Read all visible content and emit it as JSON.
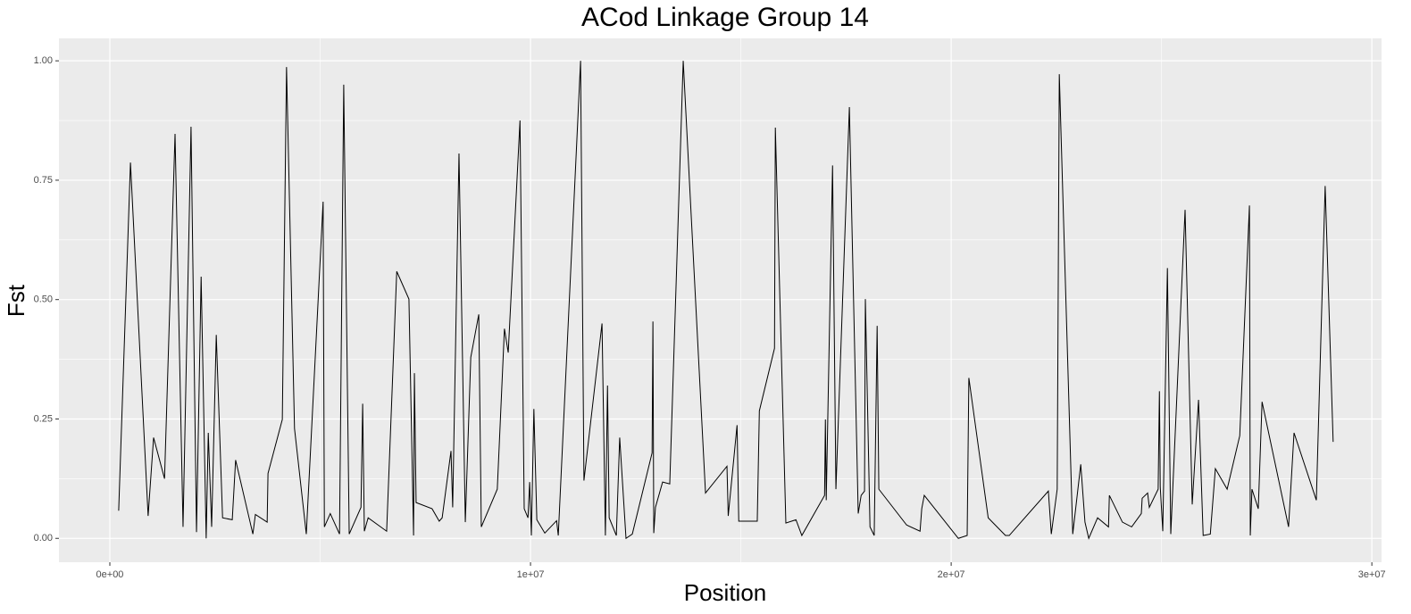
{
  "chart_data": {
    "type": "line",
    "title": "ACod Linkage Group 14",
    "x_label": "Position",
    "y_label": "Fst",
    "color": "#000000",
    "grid": true,
    "panel_color": "#ebebeb",
    "xlim": [
      -1210000,
      30230000
    ],
    "ylim": [
      -0.05,
      1.047
    ],
    "xticks": [
      {
        "value": 0,
        "label": "0e+00"
      },
      {
        "value": 10000000,
        "label": "1e+07"
      },
      {
        "value": 20000000,
        "label": "2e+07"
      },
      {
        "value": 30000000,
        "label": "3e+07"
      }
    ],
    "yticks": [
      {
        "value": 0,
        "label": "0.00"
      },
      {
        "value": 0.25,
        "label": "0.25"
      },
      {
        "value": 0.5,
        "label": "0.50"
      },
      {
        "value": 0.75,
        "label": "0.75"
      },
      {
        "value": 1,
        "label": "1.00"
      }
    ],
    "x": [
      210000,
      490000,
      910000,
      1040000,
      1300000,
      1550000,
      1740000,
      1930000,
      2060000,
      2170000,
      2290000,
      2340000,
      2420000,
      2530000,
      2680000,
      2910000,
      2990000,
      3400000,
      3460000,
      3740000,
      3760000,
      4100000,
      4200000,
      4390000,
      4670000,
      5070000,
      5100000,
      5240000,
      5460000,
      5560000,
      5690000,
      5970000,
      6010000,
      6050000,
      6140000,
      6580000,
      6820000,
      7110000,
      7220000,
      7240000,
      7280000,
      7660000,
      7830000,
      7900000,
      8110000,
      8150000,
      8300000,
      8450000,
      8580000,
      8770000,
      8830000,
      9210000,
      9380000,
      9470000,
      9750000,
      9850000,
      9940000,
      9980000,
      10020000,
      10080000,
      10150000,
      10340000,
      10620000,
      10660000,
      11190000,
      11270000,
      11700000,
      11780000,
      11830000,
      11870000,
      12040000,
      12120000,
      12270000,
      12420000,
      12890000,
      12910000,
      12930000,
      12970000,
      13140000,
      13310000,
      13630000,
      14160000,
      14670000,
      14700000,
      14910000,
      14950000,
      15390000,
      15440000,
      15800000,
      15820000,
      16070000,
      16310000,
      16450000,
      16990000,
      17010000,
      17030000,
      17180000,
      17260000,
      17580000,
      17790000,
      17860000,
      17940000,
      17960000,
      18070000,
      18170000,
      18240000,
      18280000,
      18940000,
      19260000,
      19300000,
      19360000,
      20170000,
      20380000,
      20420000,
      20880000,
      21290000,
      21380000,
      22310000,
      22380000,
      22520000,
      22570000,
      22890000,
      23080000,
      23180000,
      23270000,
      23480000,
      23740000,
      23760000,
      24070000,
      24290000,
      24520000,
      24540000,
      24670000,
      24710000,
      24920000,
      24950000,
      24970000,
      25030000,
      25140000,
      25220000,
      25560000,
      25730000,
      25880000,
      25990000,
      26160000,
      26280000,
      26560000,
      26860000,
      27090000,
      27110000,
      27150000,
      27300000,
      27390000,
      28020000,
      28150000,
      28680000,
      28890000,
      29080000
    ],
    "values": [
      0.058,
      0.787,
      0.047,
      0.211,
      0.125,
      0.847,
      0.024,
      0.862,
      0.013,
      0.548,
      0.0,
      0.221,
      0.024,
      0.426,
      0.043,
      0.039,
      0.164,
      0.009,
      0.05,
      0.034,
      0.136,
      0.249,
      0.987,
      0.23,
      0.009,
      0.705,
      0.024,
      0.052,
      0.009,
      0.95,
      0.009,
      0.065,
      0.282,
      0.015,
      0.043,
      0.015,
      0.559,
      0.501,
      0.006,
      0.346,
      0.075,
      0.062,
      0.036,
      0.043,
      0.183,
      0.065,
      0.806,
      0.034,
      0.379,
      0.469,
      0.024,
      0.103,
      0.439,
      0.389,
      0.875,
      0.062,
      0.043,
      0.118,
      0.006,
      0.271,
      0.039,
      0.011,
      0.037,
      0.006,
      1.0,
      0.121,
      0.45,
      0.006,
      0.32,
      0.043,
      0.006,
      0.211,
      0.0,
      0.009,
      0.179,
      0.454,
      0.011,
      0.065,
      0.118,
      0.114,
      1.0,
      0.095,
      0.151,
      0.047,
      0.237,
      0.036,
      0.036,
      0.267,
      0.398,
      0.86,
      0.032,
      0.039,
      0.006,
      0.09,
      0.249,
      0.08,
      0.781,
      0.103,
      0.903,
      0.052,
      0.09,
      0.099,
      0.501,
      0.024,
      0.006,
      0.445,
      0.103,
      0.028,
      0.015,
      0.062,
      0.09,
      0.0,
      0.006,
      0.336,
      0.043,
      0.006,
      0.006,
      0.099,
      0.009,
      0.103,
      0.972,
      0.009,
      0.155,
      0.034,
      0.0,
      0.043,
      0.024,
      0.09,
      0.034,
      0.024,
      0.052,
      0.084,
      0.095,
      0.065,
      0.103,
      0.308,
      0.108,
      0.015,
      0.566,
      0.009,
      0.688,
      0.071,
      0.29,
      0.006,
      0.009,
      0.146,
      0.103,
      0.215,
      0.697,
      0.006,
      0.103,
      0.062,
      0.286,
      0.024,
      0.221,
      0.08,
      0.738,
      0.202
    ]
  }
}
